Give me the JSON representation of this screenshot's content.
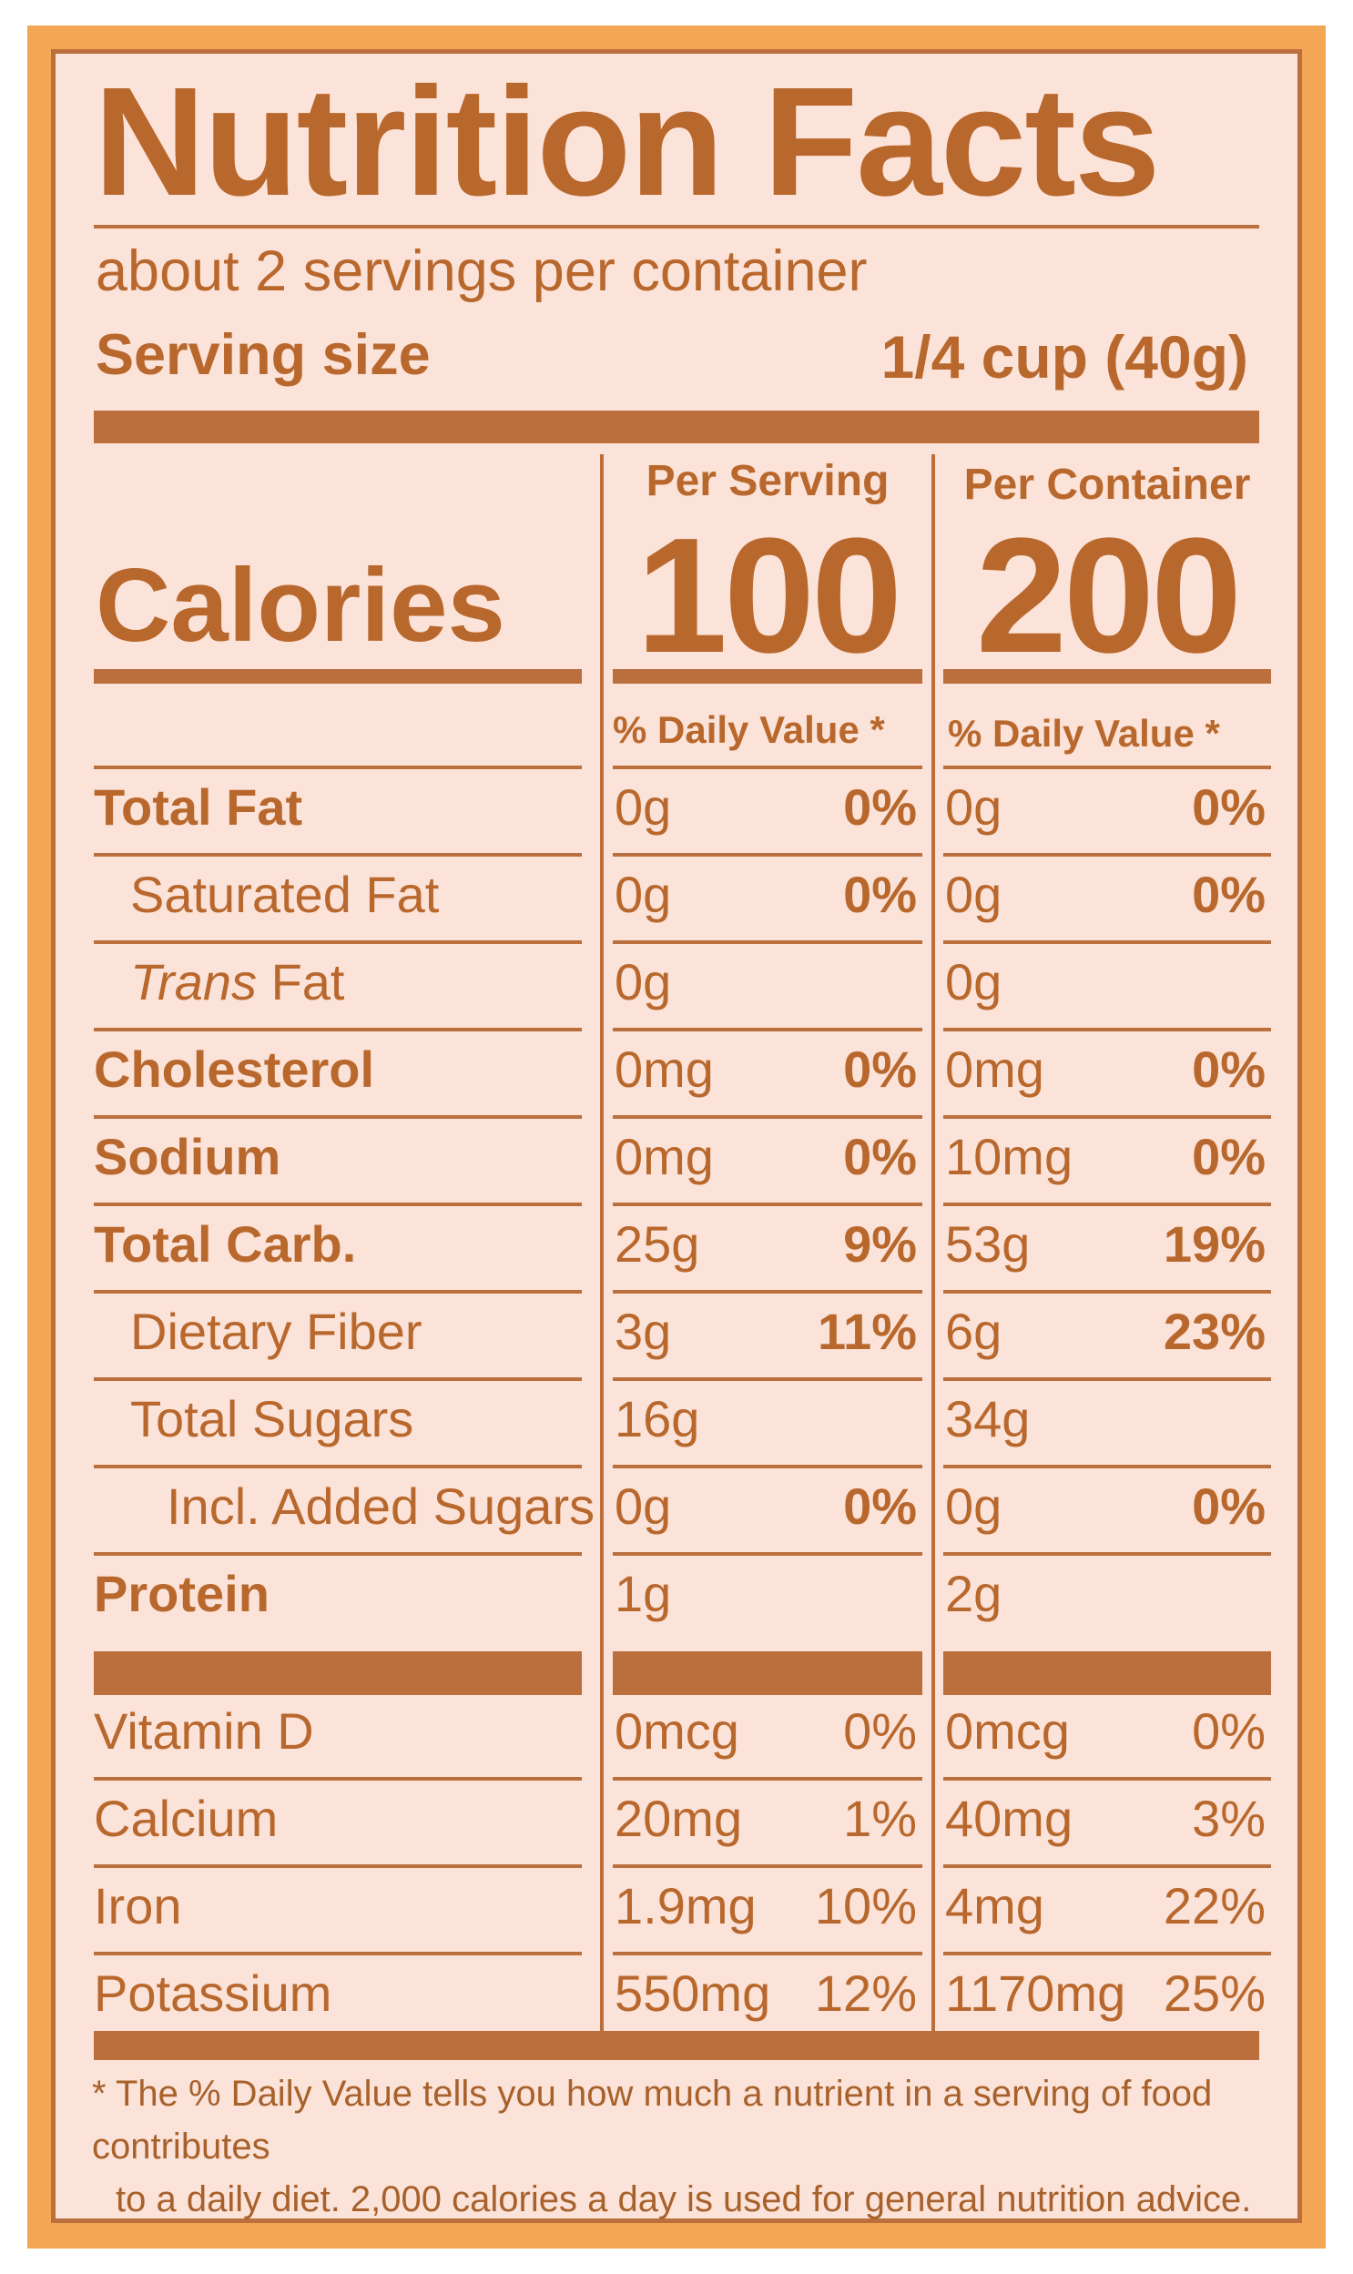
{
  "title": "Nutrition Facts",
  "servings_per_container": "about 2 servings per container",
  "serving_size": {
    "label": "Serving size",
    "value": "1/4 cup (40g)"
  },
  "columns": [
    {
      "heading": "Per Serving",
      "calories": "100",
      "dv_heading": "% Daily Value *"
    },
    {
      "heading": "Per Container",
      "calories": "200",
      "dv_heading": "% Daily Value *"
    }
  ],
  "calories_label": "Calories",
  "nutrients": [
    {
      "name": "Total Fat",
      "serving": [
        "0g",
        "0%"
      ],
      "container": [
        "0g",
        "0%"
      ]
    },
    {
      "name": "Saturated Fat",
      "serving": [
        "0g",
        "0%"
      ],
      "container": [
        "0g",
        "0%"
      ]
    },
    {
      "name_italic": "Trans",
      "name": "Fat",
      "serving": [
        "0g",
        ""
      ],
      "container": [
        "0g",
        ""
      ]
    },
    {
      "name": "Cholesterol",
      "serving": [
        "0mg",
        "0%"
      ],
      "container": [
        "0mg",
        "0%"
      ]
    },
    {
      "name": "Sodium",
      "serving": [
        "0mg",
        "0%"
      ],
      "container": [
        "10mg",
        "0%"
      ]
    },
    {
      "name": "Total Carb.",
      "serving": [
        "25g",
        "9%"
      ],
      "container": [
        "53g",
        "19%"
      ]
    },
    {
      "name": "Dietary Fiber",
      "serving": [
        "3g",
        "11%"
      ],
      "container": [
        "6g",
        "23%"
      ]
    },
    {
      "name": "Total Sugars",
      "serving": [
        "16g",
        ""
      ],
      "container": [
        "34g",
        ""
      ]
    },
    {
      "name": "Incl. Added Sugars",
      "serving": [
        "0g",
        "0%"
      ],
      "container": [
        "0g",
        "0%"
      ]
    },
    {
      "name": "Protein",
      "serving": [
        "1g",
        ""
      ],
      "container": [
        "2g",
        ""
      ]
    },
    {
      "name": "Vitamin D",
      "serving": [
        "0mcg",
        "0%"
      ],
      "container": [
        "0mcg",
        "0%"
      ]
    },
    {
      "name": "Calcium",
      "serving": [
        "20mg",
        "1%"
      ],
      "container": [
        "40mg",
        "3%"
      ]
    },
    {
      "name": "Iron",
      "serving": [
        "1.9mg",
        "10%"
      ],
      "container": [
        "4mg",
        "22%"
      ]
    },
    {
      "name": "Potassium",
      "serving": [
        "550mg",
        "12%"
      ],
      "container": [
        "1170mg",
        "25%"
      ]
    }
  ],
  "footnote": {
    "line1": "* The % Daily Value tells you how much a nutrient in a serving of food contributes",
    "line2": "to a daily diet. 2,000 calories a day is used for general nutrition advice."
  },
  "colors": {
    "ink": "#b9682d",
    "panel": "#fbe3d9",
    "frame": "#f3a654"
  }
}
